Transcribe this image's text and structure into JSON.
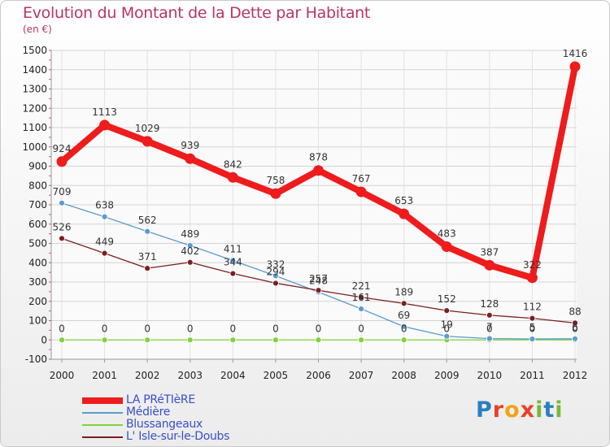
{
  "chart_data": {
    "type": "line",
    "title": "Evolution du Montant de la Dette par Habitant",
    "ylabel": "(en €)",
    "categories": [
      "2000",
      "2001",
      "2002",
      "2003",
      "2004",
      "2005",
      "2006",
      "2007",
      "2008",
      "2009",
      "2010",
      "2011",
      "2012"
    ],
    "ylim": [
      -100,
      1500
    ],
    "yticks": [
      -100,
      0,
      100,
      200,
      300,
      400,
      500,
      600,
      700,
      800,
      900,
      1000,
      1100,
      1200,
      1300,
      1400,
      1500
    ],
    "series": [
      {
        "name": "LA PRéTIèRE",
        "color": "#ee1c1c",
        "values": [
          924,
          1113,
          1029,
          939,
          842,
          758,
          878,
          767,
          653,
          483,
          387,
          322,
          1416
        ],
        "labels": [
          "924",
          "1113",
          "1029",
          "939",
          "842",
          "758",
          "878",
          "767",
          "653",
          "483",
          "387",
          "322",
          "1416"
        ]
      },
      {
        "name": "Médière",
        "color": "#5b9bd0",
        "values": [
          709,
          638,
          562,
          489,
          411,
          332,
          248,
          161,
          69,
          19,
          7,
          5,
          6
        ],
        "labels": [
          "709",
          "638",
          "562",
          "489",
          "411",
          "332",
          "248",
          "161",
          "69",
          "19",
          "7",
          "5",
          "6"
        ]
      },
      {
        "name": "Blussangeaux",
        "color": "#7fd33c",
        "values": [
          0,
          0,
          0,
          0,
          0,
          0,
          0,
          0,
          0,
          0,
          0,
          0,
          0
        ],
        "labels": [
          "0",
          "0",
          "0",
          "0",
          "0",
          "0",
          "0",
          "0",
          "0",
          "0",
          "0",
          "0",
          "0"
        ]
      },
      {
        "name": "L' Isle-sur-le-Doubs",
        "color": "#7a2020",
        "values": [
          526,
          449,
          371,
          402,
          344,
          294,
          257,
          221,
          189,
          152,
          128,
          112,
          88
        ],
        "labels": [
          "526",
          "449",
          "371",
          "402",
          "344",
          "294",
          "257",
          "221",
          "189",
          "152",
          "128",
          "112",
          "88"
        ]
      }
    ]
  },
  "logo": {
    "text": "Proxiti",
    "letters": [
      "P",
      "r",
      "o",
      "x",
      "i",
      "t",
      "i"
    ],
    "colors": [
      "#2a7fc1",
      "#e8412a",
      "#f2a31b",
      "#e8412a",
      "#77b83a",
      "#2a7fc1",
      "#77b83a"
    ]
  }
}
